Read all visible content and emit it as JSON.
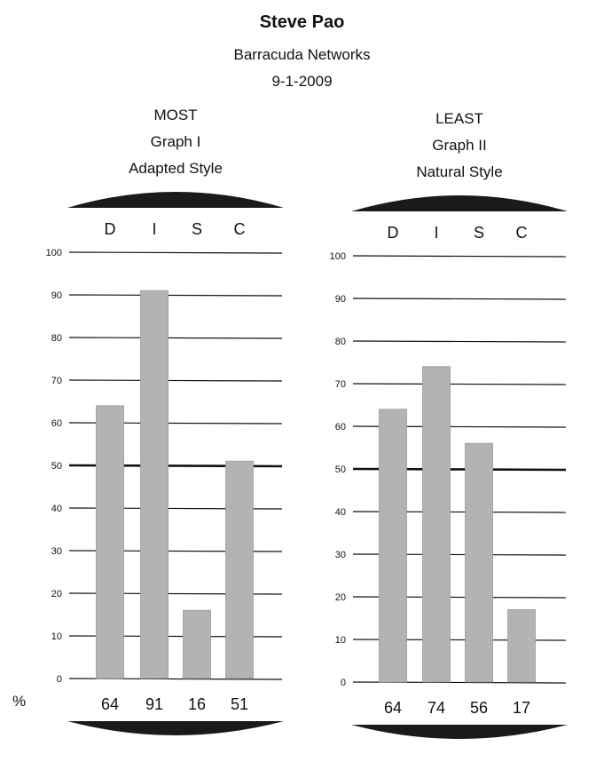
{
  "header": {
    "name": "Steve Pao",
    "company": "Barracuda Networks",
    "date": "9-1-2009"
  },
  "percent_symbol": "%",
  "chart_data": [
    {
      "type": "bar",
      "titles": [
        "MOST",
        "Graph I",
        "Adapted Style"
      ],
      "categories": [
        "D",
        "I",
        "S",
        "C"
      ],
      "values": [
        64,
        91,
        16,
        51
      ],
      "value_labels": [
        "64",
        "91",
        "16",
        "51"
      ],
      "ylim": [
        0,
        100
      ],
      "yticks": [
        0,
        10,
        20,
        30,
        40,
        50,
        60,
        70,
        80,
        90,
        100
      ],
      "bold_gridline": 50,
      "grid": true,
      "bar_color": "#b3b3b3"
    },
    {
      "type": "bar",
      "titles": [
        "LEAST",
        "Graph II",
        "Natural Style"
      ],
      "categories": [
        "D",
        "I",
        "S",
        "C"
      ],
      "values": [
        64,
        74,
        56,
        17
      ],
      "value_labels": [
        "64",
        "74",
        "56",
        "17"
      ],
      "ylim": [
        0,
        100
      ],
      "yticks": [
        0,
        10,
        20,
        30,
        40,
        50,
        60,
        70,
        80,
        90,
        100
      ],
      "bold_gridline": 50,
      "grid": true,
      "bar_color": "#b3b3b3"
    }
  ]
}
